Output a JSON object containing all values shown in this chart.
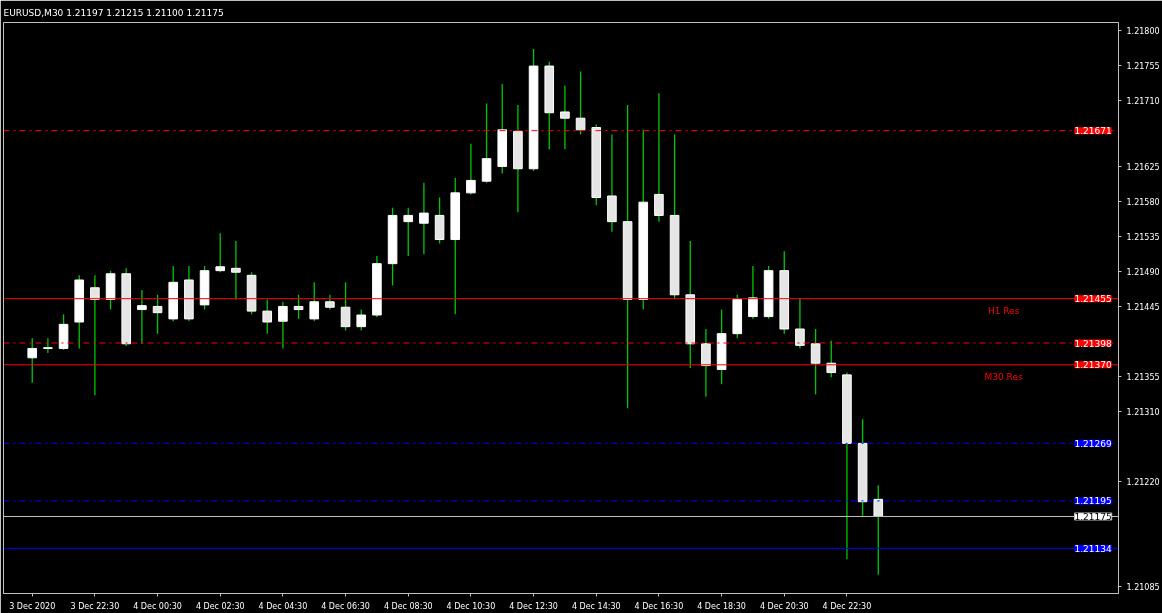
{
  "chart_data": {
    "type": "candlestick",
    "title": "EURUSD,M30  1.21197 1.21215 1.21100 1.21175",
    "x": [
      "2020-12-03T20:30",
      "2020-12-03T21:00",
      "2020-12-03T21:30",
      "2020-12-03T22:00",
      "2020-12-03T22:30",
      "2020-12-03T23:00",
      "2020-12-03T23:30",
      "2020-12-04T00:00",
      "2020-12-04T00:30",
      "2020-12-04T01:00",
      "2020-12-04T01:30",
      "2020-12-04T02:00",
      "2020-12-04T02:30",
      "2020-12-04T03:00",
      "2020-12-04T03:30",
      "2020-12-04T04:00",
      "2020-12-04T04:30",
      "2020-12-04T05:00",
      "2020-12-04T05:30",
      "2020-12-04T06:00",
      "2020-12-04T06:30",
      "2020-12-04T07:00",
      "2020-12-04T07:30",
      "2020-12-04T08:00",
      "2020-12-04T08:30",
      "2020-12-04T09:00",
      "2020-12-04T09:30",
      "2020-12-04T10:00",
      "2020-12-04T10:30",
      "2020-12-04T11:00",
      "2020-12-04T11:30",
      "2020-12-04T12:00",
      "2020-12-04T12:30",
      "2020-12-04T13:00",
      "2020-12-04T13:30",
      "2020-12-04T14:00",
      "2020-12-04T14:30",
      "2020-12-04T15:00",
      "2020-12-04T15:30",
      "2020-12-04T16:00",
      "2020-12-04T16:30",
      "2020-12-04T17:00",
      "2020-12-04T17:30",
      "2020-12-04T18:00",
      "2020-12-04T18:30",
      "2020-12-04T19:00",
      "2020-12-04T19:30",
      "2020-12-04T20:00",
      "2020-12-04T20:30",
      "2020-12-04T21:00",
      "2020-12-04T21:30",
      "2020-12-04T22:00",
      "2020-12-04T22:30",
      "2020-12-04T23:00",
      "2020-12-04T23:30"
    ],
    "series": [
      {
        "color": "#ffffff",
        "ohlc": [
          [
            1.21379,
            1.21404,
            1.21347,
            1.21391
          ],
          [
            1.21391,
            1.21404,
            1.21385,
            1.21392
          ],
          [
            1.21391,
            1.21435,
            1.21389,
            1.21422
          ],
          [
            1.21425,
            1.21485,
            1.21391,
            1.21479
          ],
          [
            1.21469,
            1.21485,
            1.21331,
            1.21454
          ],
          [
            1.21454,
            1.21491,
            1.21441,
            1.21487
          ],
          [
            1.21487,
            1.21494,
            1.21394,
            1.21397
          ],
          [
            1.21441,
            1.21466,
            1.21397,
            1.21446
          ],
          [
            1.21445,
            1.2146,
            1.2141,
            1.21437
          ],
          [
            1.21429,
            1.21497,
            1.21426,
            1.21476
          ],
          [
            1.21479,
            1.21497,
            1.21426,
            1.21429
          ],
          [
            1.21447,
            1.21497,
            1.21441,
            1.21491
          ],
          [
            1.21491,
            1.21539,
            1.21489,
            1.21496
          ],
          [
            1.21494,
            1.21529,
            1.21454,
            1.21489
          ],
          [
            1.21485,
            1.21489,
            1.21435,
            1.21439
          ],
          [
            1.21439,
            1.21454,
            1.2141,
            1.21425
          ],
          [
            1.21426,
            1.21451,
            1.21391,
            1.21445
          ],
          [
            1.21445,
            1.2146,
            1.21429,
            1.21441
          ],
          [
            1.21429,
            1.21476,
            1.21426,
            1.21451
          ],
          [
            1.21451,
            1.2146,
            1.21441,
            1.21444
          ],
          [
            1.21444,
            1.21476,
            1.21414,
            1.21419
          ],
          [
            1.21419,
            1.21441,
            1.21414,
            1.21434
          ],
          [
            1.21434,
            1.2151,
            1.21431,
            1.215
          ],
          [
            1.215,
            1.21572,
            1.21472,
            1.21562
          ],
          [
            1.21554,
            1.21572,
            1.2151,
            1.21562
          ],
          [
            1.21552,
            1.21604,
            1.21512,
            1.21565
          ],
          [
            1.21562,
            1.21585,
            1.21526,
            1.21531
          ],
          [
            1.21531,
            1.2161,
            1.21435,
            1.21591
          ],
          [
            1.21591,
            1.21654,
            1.21589,
            1.21607
          ],
          [
            1.21606,
            1.21706,
            1.21604,
            1.21635
          ],
          [
            1.21625,
            1.21731,
            1.21616,
            1.21672
          ],
          [
            1.2167,
            1.21704,
            1.21566,
            1.21622
          ],
          [
            1.21622,
            1.21776,
            1.21619,
            1.21754
          ],
          [
            1.21754,
            1.2176,
            1.21647,
            1.21694
          ],
          [
            1.21695,
            1.21729,
            1.21647,
            1.21687
          ],
          [
            1.21687,
            1.21747,
            1.21666,
            1.21672
          ],
          [
            1.21675,
            1.21679,
            1.21575,
            1.21585
          ],
          [
            1.21587,
            1.21666,
            1.21541,
            1.21554
          ],
          [
            1.21554,
            1.21704,
            1.21314,
            1.21454
          ],
          [
            1.21454,
            1.21672,
            1.21441,
            1.21579
          ],
          [
            1.21589,
            1.21719,
            1.21554,
            1.21562
          ],
          [
            1.21562,
            1.21666,
            1.21454,
            1.2146
          ],
          [
            1.2146,
            1.21529,
            1.21366,
            1.21397
          ],
          [
            1.21397,
            1.21416,
            1.21329,
            1.21369
          ],
          [
            1.21364,
            1.21441,
            1.21345,
            1.2141
          ],
          [
            1.2141,
            1.2146,
            1.21404,
            1.21454
          ],
          [
            1.21432,
            1.21497,
            1.21429,
            1.21456
          ],
          [
            1.21432,
            1.21497,
            1.21429,
            1.21491
          ],
          [
            1.21491,
            1.21516,
            1.2141,
            1.21416
          ],
          [
            1.21416,
            1.21456,
            1.21391,
            1.21395
          ],
          [
            1.21397,
            1.21416,
            1.21332,
            1.21372
          ],
          [
            1.21372,
            1.21401,
            1.21354,
            1.2136
          ],
          [
            1.21357,
            1.2136,
            1.2112,
            1.21269
          ],
          [
            1.21269,
            1.213,
            1.21176,
            1.21194
          ],
          [
            1.21197,
            1.21215,
            1.211,
            1.21175
          ]
        ]
      }
    ],
    "xlim": [
      "2020-12-03T19:35",
      "2020-12-05T07:10"
    ],
    "xticks": [
      {
        "value": "2020-12-03T20:30",
        "label": "3 Dec 2020"
      },
      {
        "value": "2020-12-03T22:30",
        "label": "3 Dec 22:30"
      },
      {
        "value": "2020-12-04T00:30",
        "label": "4 Dec 00:30"
      },
      {
        "value": "2020-12-04T02:30",
        "label": "4 Dec 02:30"
      },
      {
        "value": "2020-12-04T04:30",
        "label": "4 Dec 04:30"
      },
      {
        "value": "2020-12-04T06:30",
        "label": "4 Dec 06:30"
      },
      {
        "value": "2020-12-04T08:30",
        "label": "4 Dec 08:30"
      },
      {
        "value": "2020-12-04T10:30",
        "label": "4 Dec 10:30"
      },
      {
        "value": "2020-12-04T12:30",
        "label": "4 Dec 12:30"
      },
      {
        "value": "2020-12-04T14:30",
        "label": "4 Dec 14:30"
      },
      {
        "value": "2020-12-04T16:30",
        "label": "4 Dec 16:30"
      },
      {
        "value": "2020-12-04T18:30",
        "label": "4 Dec 18:30"
      },
      {
        "value": "2020-12-04T20:30",
        "label": "4 Dec 20:30"
      },
      {
        "value": "2020-12-04T22:30",
        "label": "4 Dec 22:30"
      }
    ],
    "ylim": [
      1.21076,
      1.2181
    ],
    "yticks": [
      {
        "value": 1.218,
        "label": "1.21800"
      },
      1.21755,
      {
        "value": 1.2171,
        "label": "1.21710"
      },
      1.21625,
      {
        "value": 1.2158,
        "label": "1.21580"
      },
      1.21535,
      {
        "value": 1.2149,
        "label": "1.21490"
      },
      1.21445,
      1.21355,
      {
        "value": 1.2131,
        "label": "1.21310"
      },
      {
        "value": 1.2122,
        "label": "1.21220"
      },
      1.21085
    ],
    "ref_lines": [
      {
        "axis": "y",
        "value": 1.21671,
        "color": "#ff0000",
        "line_style": "dashdot",
        "label": "1.21671"
      },
      {
        "axis": "y",
        "value": 1.21455,
        "color": "#ff0000",
        "line_style": "solid",
        "label": "1.21455"
      },
      {
        "axis": "y",
        "value": 1.21398,
        "color": "#ff0000",
        "line_style": "dashdot",
        "label": "1.21398"
      },
      {
        "axis": "y",
        "value": 1.2137,
        "color": "#ff0000",
        "line_style": "solid",
        "label": "1.21370"
      },
      {
        "axis": "y",
        "value": 1.21269,
        "color": "#0000ff",
        "line_style": "dashdot",
        "label": "1.21269"
      },
      {
        "axis": "y",
        "value": 1.21195,
        "color": "#0000ff",
        "line_style": "dashdot",
        "label": "1.21195"
      },
      {
        "axis": "y",
        "value": 1.21175,
        "color": "#c0c0c0",
        "line_style": "solid",
        "label": "1.21175"
      },
      {
        "axis": "y",
        "value": 1.21134,
        "color": "#0000ff",
        "line_style": "solid",
        "label": "1.21134"
      }
    ],
    "annotations": [
      {
        "text": "H1 Res",
        "x": "2020-12-05T03:30",
        "y": 1.21455
      },
      {
        "text": "M30 Res",
        "x": "2020-12-05T03:30",
        "y": 1.2137
      }
    ],
    "grid": false
  }
}
